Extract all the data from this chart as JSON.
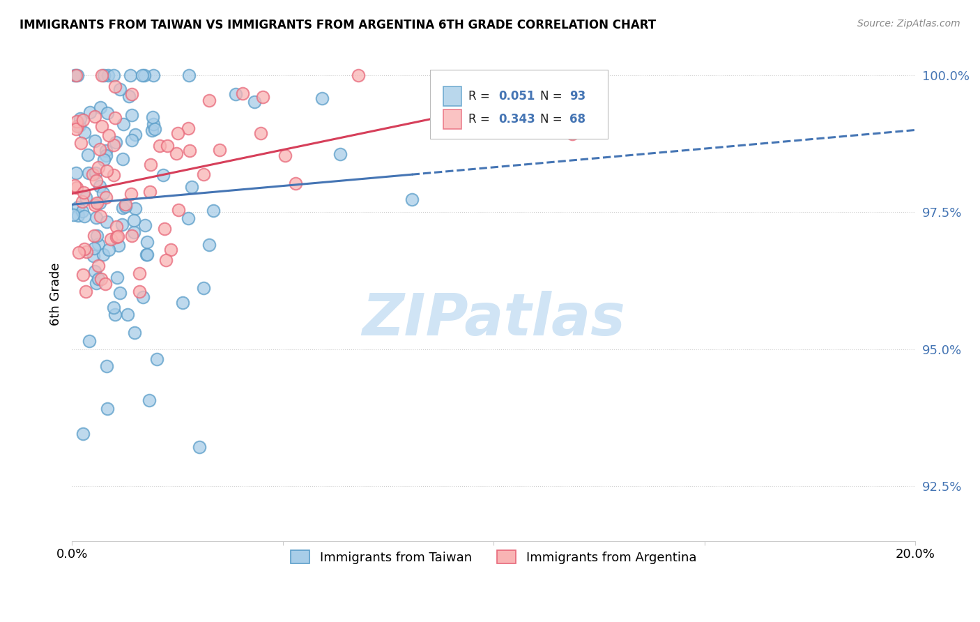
{
  "title": "IMMIGRANTS FROM TAIWAN VS IMMIGRANTS FROM ARGENTINA 6TH GRADE CORRELATION CHART",
  "source": "Source: ZipAtlas.com",
  "ylabel": "6th Grade",
  "xlim": [
    0.0,
    0.2
  ],
  "ylim": [
    0.915,
    1.005
  ],
  "yticks": [
    0.925,
    0.95,
    0.975,
    1.0
  ],
  "ytick_labels": [
    "92.5%",
    "95.0%",
    "97.5%",
    "100.0%"
  ],
  "taiwan_R": 0.051,
  "taiwan_N": 93,
  "argentina_R": 0.343,
  "argentina_N": 68,
  "taiwan_color": "#a8cde8",
  "taiwan_edge": "#5b9ec9",
  "argentina_color": "#f9b4b4",
  "argentina_edge": "#e8687a",
  "line_taiwan_color": "#4575b4",
  "line_argentina_color": "#d63f5a",
  "watermark": "ZIPatlas",
  "watermark_color": "#d0e4f5"
}
